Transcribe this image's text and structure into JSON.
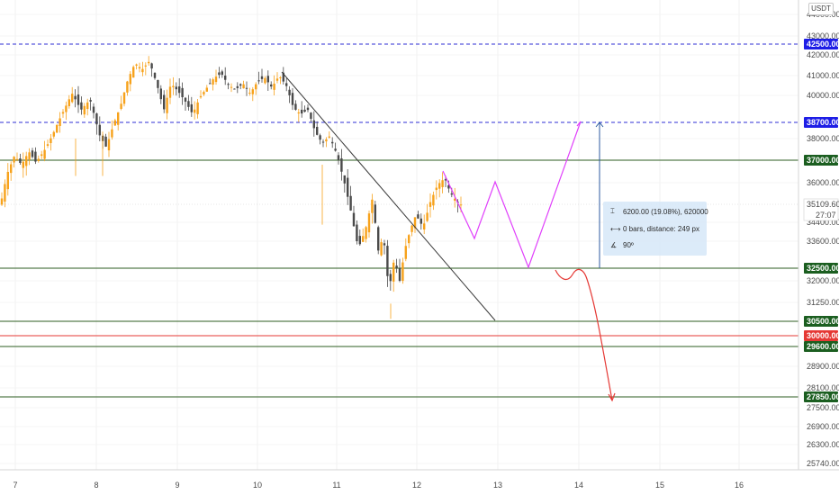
{
  "currency_label": "USDT",
  "price_axis": {
    "labels": [
      {
        "price": 44000,
        "text": "44000.00"
      },
      {
        "price": 43000,
        "text": "43000.00"
      },
      {
        "price": 42000,
        "text": "42000.00"
      },
      {
        "price": 41000,
        "text": "41000.00"
      },
      {
        "price": 40000,
        "text": "40000.00"
      },
      {
        "price": 38000,
        "text": "38000.00"
      },
      {
        "price": 36000,
        "text": "36000.00"
      },
      {
        "price": 34400,
        "text": "34400.00"
      },
      {
        "price": 33600,
        "text": "33600.00"
      },
      {
        "price": 32000,
        "text": "32000.00"
      },
      {
        "price": 31250,
        "text": "31250.00"
      },
      {
        "price": 28900,
        "text": "28900.00"
      },
      {
        "price": 28100,
        "text": "28100.00"
      },
      {
        "price": 27500,
        "text": "27500.00"
      },
      {
        "price": 26900,
        "text": "26900.00"
      },
      {
        "price": 26300,
        "text": "26300.00"
      },
      {
        "price": 25740,
        "text": "25740.00"
      }
    ]
  },
  "time_axis": {
    "labels": [
      "7",
      "8",
      "9",
      "10",
      "11",
      "12",
      "13",
      "14",
      "15",
      "16"
    ]
  },
  "price_tags": [
    {
      "name": "tag-42500",
      "text": "42500.00",
      "color": "#1e1ee6",
      "price": 42500
    },
    {
      "name": "tag-38700",
      "text": "38700.00",
      "color": "#1e1ee6",
      "price": 38700
    },
    {
      "name": "tag-37000",
      "text": "37000.00",
      "color": "#1b5e20",
      "price": 37000
    },
    {
      "name": "tag-32500",
      "text": "32500.00",
      "color": "#1b5e20",
      "price": 32500
    },
    {
      "name": "tag-30500",
      "text": "30500.00",
      "color": "#1b5e20",
      "price": 30500
    },
    {
      "name": "tag-30000",
      "text": "30000.00",
      "color": "#e53935",
      "price": 30000
    },
    {
      "name": "tag-29600",
      "text": "29600.00",
      "color": "#1b5e20",
      "price": 29600
    },
    {
      "name": "tag-27850",
      "text": "27850.00",
      "color": "#1b5e20",
      "price": 27850
    }
  ],
  "current_price": {
    "text": "35109.60",
    "countdown": "27:07",
    "price": 35109.6
  },
  "horizontal_lines": [
    {
      "price": 42500,
      "color": "#2f2fd6",
      "style": "dashed"
    },
    {
      "price": 38700,
      "color": "#2f2fd6",
      "style": "dashed"
    },
    {
      "price": 37000,
      "color": "#2e5e20",
      "style": "solid"
    },
    {
      "price": 32500,
      "color": "#2e5e20",
      "style": "solid"
    },
    {
      "price": 30500,
      "color": "#2e5e20",
      "style": "solid"
    },
    {
      "price": 30000,
      "color": "#e53935",
      "style": "solid"
    },
    {
      "price": 29600,
      "color": "#2e5e20",
      "style": "solid"
    },
    {
      "price": 27850,
      "color": "#2e5e20",
      "style": "solid"
    }
  ],
  "measure_tool": {
    "price_range": "6200.00 (19.08%), 620000",
    "bars_distance": "0 bars, distance: 249 px",
    "angle": "90º"
  },
  "colors": {
    "bull": "#f7a21b",
    "bear": "#4a4a4a",
    "projection_pink": "#e040fb",
    "projection_red": "#e53935",
    "trendline": "#3a3a3a",
    "measure_line": "#2c5aa0"
  }
}
